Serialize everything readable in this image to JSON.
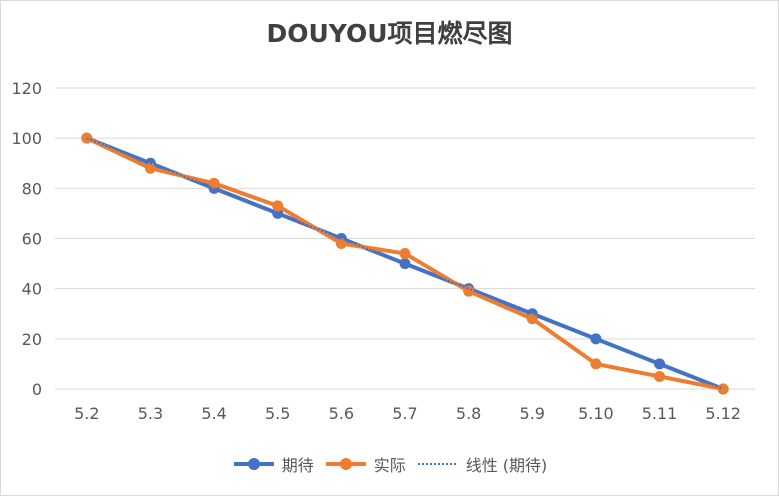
{
  "chart_data": {
    "type": "line",
    "title": "DOUYOU项目燃尽图",
    "categories": [
      "5.2",
      "5.3",
      "5.4",
      "5.5",
      "5.6",
      "5.7",
      "5.8",
      "5.9",
      "5.10",
      "5.11",
      "5.12"
    ],
    "ylim": [
      0,
      120
    ],
    "yticks": [
      "0",
      "20",
      "40",
      "60",
      "80",
      "100",
      "120"
    ],
    "grid": true,
    "legend_position": "bottom",
    "series": [
      {
        "name": "期待",
        "color": "#4472C4",
        "values": [
          100,
          90,
          80,
          70,
          60,
          50,
          40,
          30,
          20,
          10,
          0
        ]
      },
      {
        "name": "实际",
        "color": "#ED7D31",
        "values": [
          100,
          88,
          82,
          73,
          58,
          54,
          39,
          28,
          10,
          5,
          0
        ]
      }
    ],
    "trendline": {
      "name": "线性 (期待)",
      "color": "#4472C4",
      "style": "dotted"
    }
  }
}
